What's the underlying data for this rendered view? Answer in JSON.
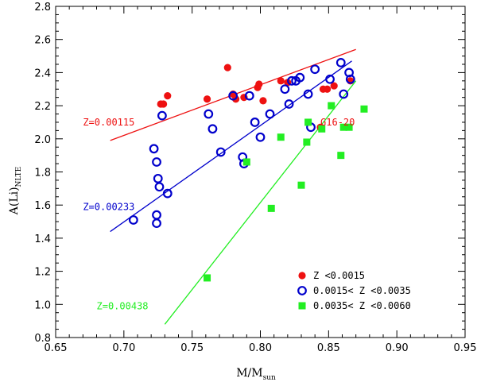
{
  "chart_data": {
    "type": "scatter",
    "xlabel": "M/M",
    "xlabel_sub": "sun",
    "ylabel": "A(Li)",
    "ylabel_sub": "NLTE",
    "xlim": [
      0.65,
      0.95
    ],
    "ylim": [
      0.8,
      2.8
    ],
    "x_ticks": [
      "0.65",
      "0.70",
      "0.75",
      "0.80",
      "0.85",
      "0.90",
      "0.95"
    ],
    "y_ticks": [
      "0.8",
      "1.0",
      "1.2",
      "1.4",
      "1.6",
      "1.8",
      "2.0",
      "2.2",
      "2.4",
      "2.6",
      "2.8"
    ],
    "colors": {
      "red": "#ee1111",
      "blue": "#0000cc",
      "green": "#22ee22"
    },
    "series": [
      {
        "name": "Z <0.0015",
        "marker": "filled-circle",
        "color": "#ee1111",
        "points": [
          [
            0.727,
            2.21
          ],
          [
            0.729,
            2.21
          ],
          [
            0.732,
            2.26
          ],
          [
            0.761,
            2.24
          ],
          [
            0.776,
            2.43
          ],
          [
            0.78,
            2.27
          ],
          [
            0.782,
            2.24
          ],
          [
            0.788,
            2.25
          ],
          [
            0.798,
            2.31
          ],
          [
            0.799,
            2.33
          ],
          [
            0.802,
            2.23
          ],
          [
            0.815,
            2.35
          ],
          [
            0.82,
            2.34
          ],
          [
            0.844,
            2.07
          ],
          [
            0.846,
            2.3
          ],
          [
            0.849,
            2.3
          ],
          [
            0.854,
            2.32
          ],
          [
            0.866,
            2.35
          ]
        ]
      },
      {
        "name": "0.0015< Z <0.0035",
        "marker": "open-circle",
        "color": "#0000cc",
        "points": [
          [
            0.707,
            1.51
          ],
          [
            0.722,
            1.94
          ],
          [
            0.724,
            1.86
          ],
          [
            0.725,
            1.76
          ],
          [
            0.724,
            1.54
          ],
          [
            0.724,
            1.49
          ],
          [
            0.726,
            1.71
          ],
          [
            0.728,
            2.14
          ],
          [
            0.732,
            1.67
          ],
          [
            0.762,
            2.15
          ],
          [
            0.765,
            2.06
          ],
          [
            0.771,
            1.92
          ],
          [
            0.78,
            2.26
          ],
          [
            0.787,
            1.89
          ],
          [
            0.788,
            1.85
          ],
          [
            0.792,
            2.26
          ],
          [
            0.796,
            2.1
          ],
          [
            0.8,
            2.01
          ],
          [
            0.807,
            2.15
          ],
          [
            0.818,
            2.3
          ],
          [
            0.821,
            2.21
          ],
          [
            0.823,
            2.35
          ],
          [
            0.826,
            2.35
          ],
          [
            0.829,
            2.37
          ],
          [
            0.835,
            2.27
          ],
          [
            0.837,
            2.07
          ],
          [
            0.84,
            2.42
          ],
          [
            0.851,
            2.36
          ],
          [
            0.859,
            2.46
          ],
          [
            0.861,
            2.27
          ],
          [
            0.865,
            2.4
          ],
          [
            0.866,
            2.36
          ]
        ]
      },
      {
        "name": "0.0035< Z <0.0060",
        "marker": "filled-square",
        "color": "#22ee22",
        "points": [
          [
            0.761,
            1.16
          ],
          [
            0.79,
            1.86
          ],
          [
            0.808,
            1.58
          ],
          [
            0.815,
            2.01
          ],
          [
            0.83,
            1.72
          ],
          [
            0.834,
            1.98
          ],
          [
            0.835,
            2.1
          ],
          [
            0.845,
            2.06
          ],
          [
            0.852,
            2.2
          ],
          [
            0.859,
            1.9
          ],
          [
            0.861,
            2.07
          ],
          [
            0.865,
            2.07
          ],
          [
            0.876,
            2.18
          ]
        ]
      }
    ],
    "fit_lines": [
      {
        "name": "Z=0.00115",
        "color": "#ee1111",
        "x": [
          0.69,
          0.87
        ],
        "y": [
          1.99,
          2.54
        ]
      },
      {
        "name": "Z=0.00233",
        "color": "#0000cc",
        "x": [
          0.69,
          0.867
        ],
        "y": [
          1.44,
          2.47
        ]
      },
      {
        "name": "Z=0.00438",
        "color": "#22ee22",
        "x": [
          0.73,
          0.87
        ],
        "y": [
          0.88,
          2.35
        ]
      }
    ],
    "annotations": [
      {
        "text": "Z=0.00115",
        "color": "#ee1111",
        "at": [
          0.67,
          2.1
        ]
      },
      {
        "text": "Z=0.00233",
        "color": "#0000cc",
        "at": [
          0.67,
          1.59
        ]
      },
      {
        "text": "Z=0.00438",
        "color": "#22ee22",
        "at": [
          0.68,
          0.99
        ]
      },
      {
        "text": "G16-20",
        "color": "#ee1111",
        "at": [
          0.844,
          2.1
        ]
      }
    ],
    "legend": {
      "position": "bottom-right",
      "entries": [
        "Z <0.0015",
        "0.0015< Z <0.0035",
        "0.0035< Z <0.0060"
      ]
    }
  }
}
